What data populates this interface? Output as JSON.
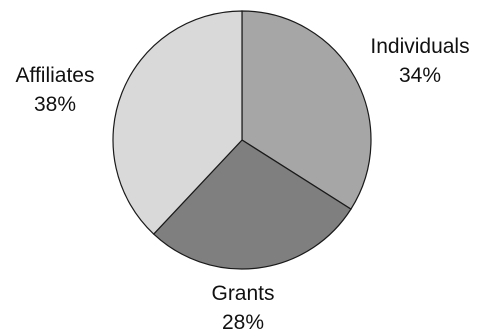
{
  "chart_data": {
    "type": "pie",
    "title": "",
    "start_angle_deg": 0,
    "direction": "clockwise",
    "slices": [
      {
        "label": "Individuals",
        "value": 34,
        "value_label": "34%",
        "color": "#a6a6a6"
      },
      {
        "label": "Grants",
        "value": 28,
        "value_label": "28%",
        "color": "#7f7f7f"
      },
      {
        "label": "Affiliates",
        "value": 38,
        "value_label": "38%",
        "color": "#d9d9d9"
      }
    ]
  }
}
